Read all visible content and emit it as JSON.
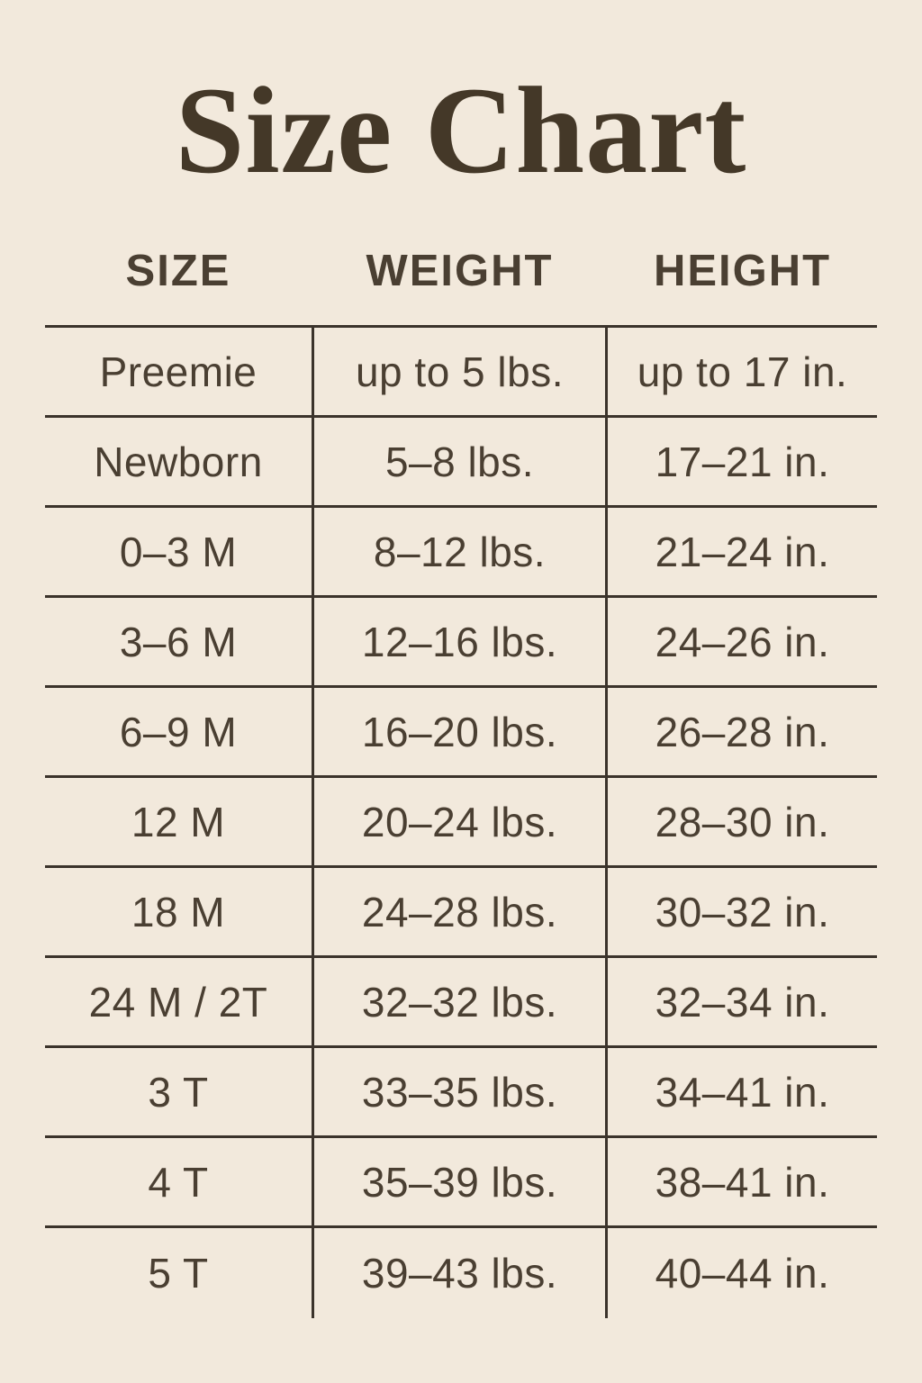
{
  "page": {
    "title": "Size Chart"
  },
  "colors": {
    "background": "#f2e9dc",
    "text": "#4a3f32",
    "title_text": "#443828",
    "line": "#3b332b"
  },
  "chart_data": {
    "type": "table",
    "title": "Size Chart",
    "columns": [
      "SIZE",
      "WEIGHT",
      "HEIGHT"
    ],
    "rows": [
      [
        "Preemie",
        "up to 5 lbs.",
        "up to 17 in."
      ],
      [
        "Newborn",
        "5–8 lbs.",
        "17–21 in."
      ],
      [
        "0–3 M",
        "8–12 lbs.",
        "21–24 in."
      ],
      [
        "3–6 M",
        "12–16 lbs.",
        "24–26 in."
      ],
      [
        "6–9 M",
        "16–20 lbs.",
        "26–28 in."
      ],
      [
        "12 M",
        "20–24 lbs.",
        "28–30 in."
      ],
      [
        "18 M",
        "24–28 lbs.",
        "30–32 in."
      ],
      [
        "24 M / 2T",
        "32–32 lbs.",
        "32–34 in."
      ],
      [
        "3 T",
        "33–35 lbs.",
        "34–41 in."
      ],
      [
        "4 T",
        "35–39 lbs.",
        "38–41 in."
      ],
      [
        "5 T",
        "39–43 lbs.",
        "40–44 in."
      ]
    ]
  }
}
